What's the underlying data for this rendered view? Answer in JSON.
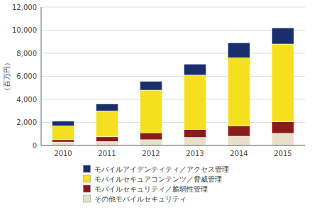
{
  "chart_data": {
    "type": "bar",
    "stacked": true,
    "categories": [
      "2010",
      "2011",
      "2012",
      "2013",
      "2014",
      "2015"
    ],
    "series": [
      {
        "name": "その他モバイルセキュリティ",
        "color": "#E8E0C8",
        "values": [
          300,
          350,
          500,
          700,
          800,
          1050
        ]
      },
      {
        "name": "モバイルセキュリティ／脆弱性管理",
        "color": "#8B1A1A",
        "values": [
          200,
          400,
          600,
          700,
          900,
          1000
        ]
      },
      {
        "name": "モバイルセキュアコンテンツ／脅威管理",
        "color": "#F5E020",
        "values": [
          1200,
          2250,
          3700,
          4700,
          5900,
          6750
        ]
      },
      {
        "name": "モバイルアイデンティティ／アクセス管理",
        "color": "#1A2E6E",
        "values": [
          400,
          600,
          750,
          950,
          1300,
          1400
        ]
      }
    ],
    "ylabel": "（百万円）",
    "ylim": [
      0,
      12000
    ],
    "yticks": [
      0,
      {
        "value": 2000,
        "label": "2,000"
      },
      {
        "value": 4000,
        "label": "4,000"
      },
      {
        "value": 6000,
        "label": "6,000"
      },
      {
        "value": 8000,
        "label": "8,000"
      },
      {
        "value": 10000,
        "label": "10,000"
      },
      {
        "value": 12000,
        "label": "12,000"
      }
    ],
    "grid": true,
    "legend": "bottom"
  }
}
